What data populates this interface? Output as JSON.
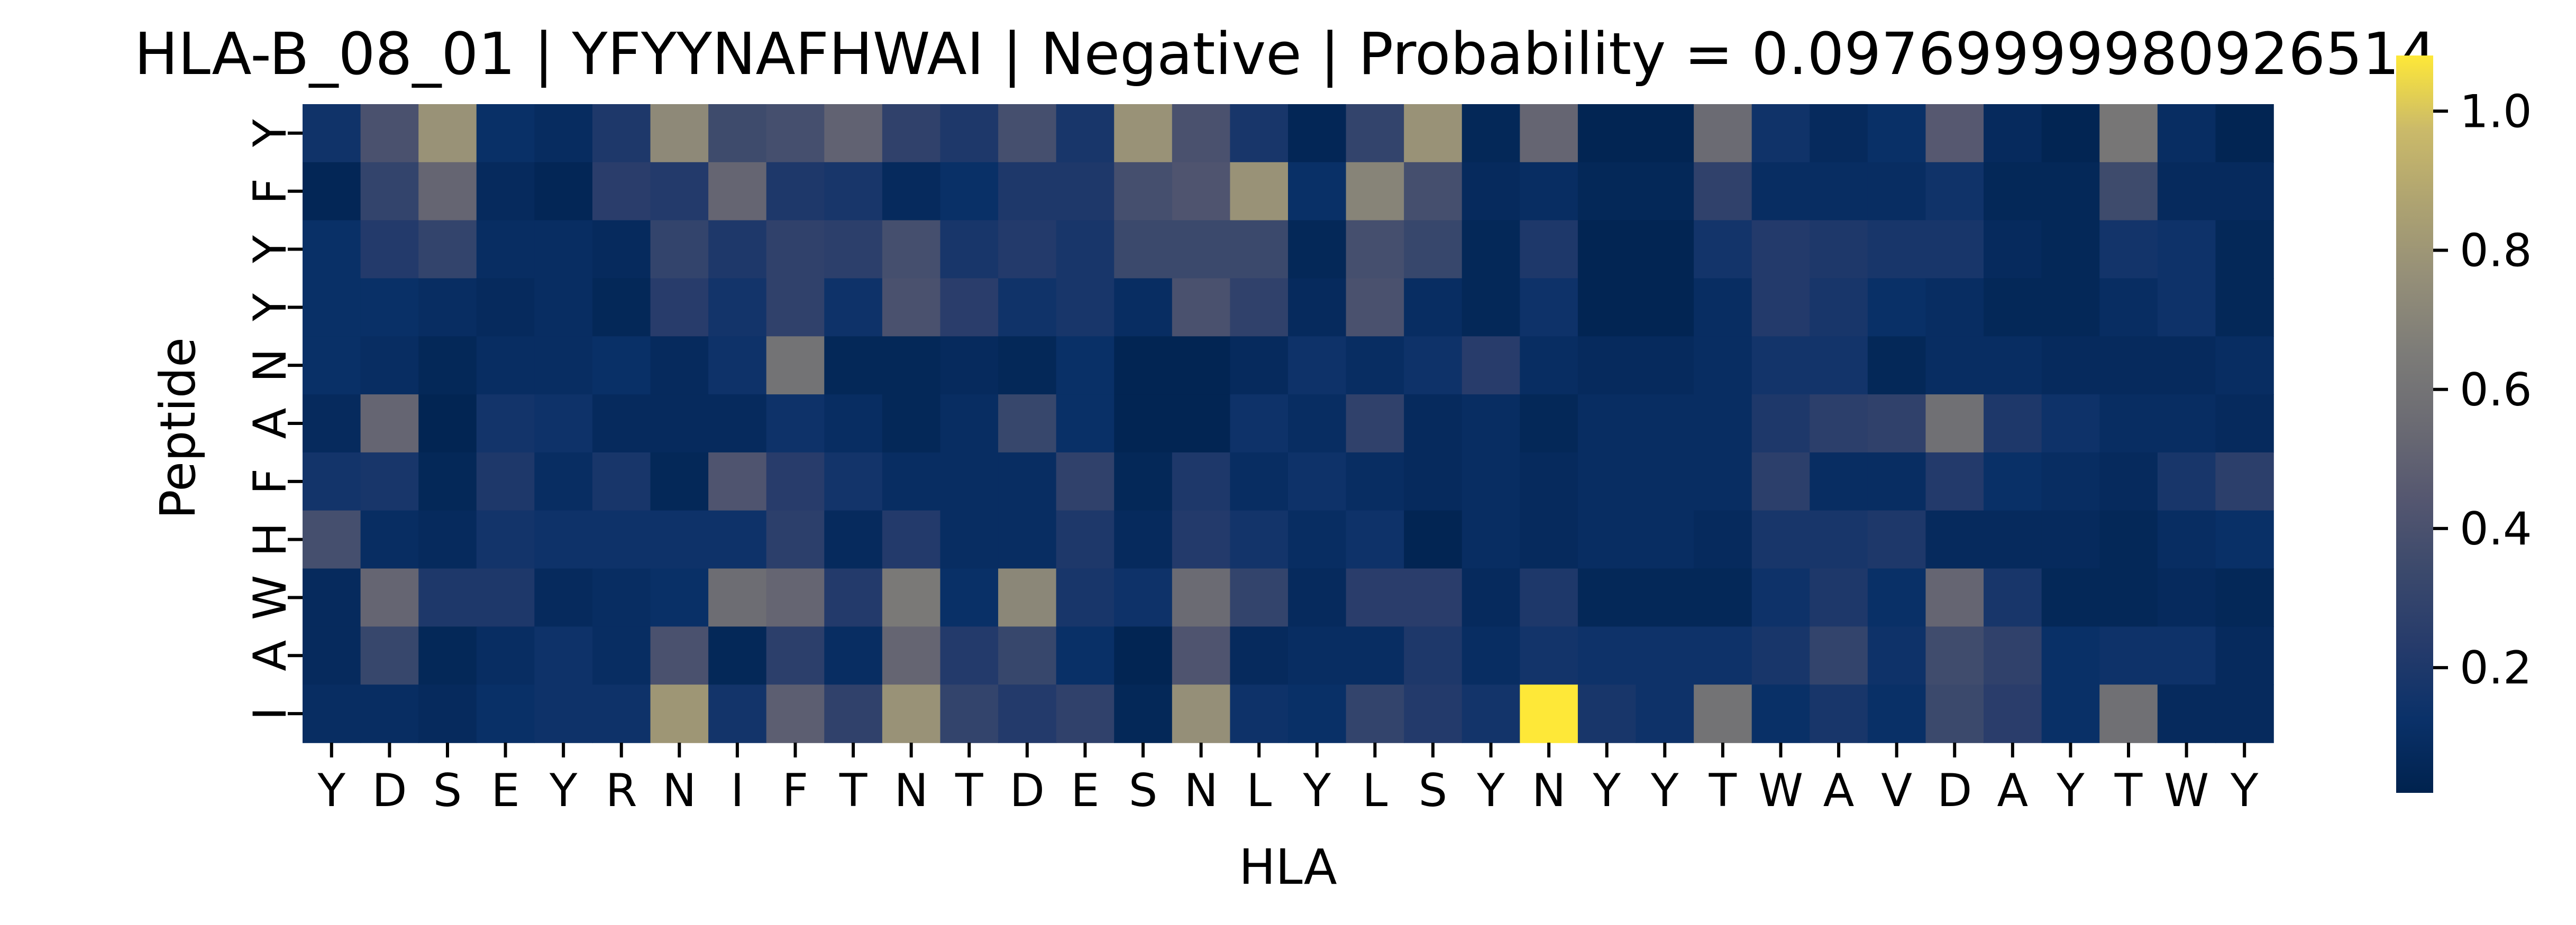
{
  "chart_data": {
    "type": "heatmap",
    "title": "HLA-B_08_01 | YFYYNAFHWAI | Negative | Probability = 0.09769999980926514",
    "xlabel": "HLA",
    "ylabel": "Peptide",
    "x_categories": [
      "Y",
      "D",
      "S",
      "E",
      "Y",
      "R",
      "N",
      "I",
      "F",
      "T",
      "N",
      "T",
      "D",
      "E",
      "S",
      "N",
      "L",
      "Y",
      "L",
      "S",
      "Y",
      "N",
      "Y",
      "Y",
      "T",
      "W",
      "A",
      "V",
      "D",
      "A",
      "Y",
      "T",
      "W",
      "Y"
    ],
    "y_categories": [
      "Y",
      "F",
      "Y",
      "Y",
      "N",
      "A",
      "F",
      "H",
      "W",
      "A",
      "I"
    ],
    "colormap": "cividis",
    "colorbar": {
      "range": [
        0.02,
        1.08
      ],
      "ticks": [
        0.2,
        0.4,
        0.6,
        0.8,
        1.0
      ],
      "tick_labels": [
        "0.2",
        "0.4",
        "0.6",
        "0.8",
        "1.0"
      ]
    },
    "values": [
      [
        0.15,
        0.4,
        0.78,
        0.12,
        0.09,
        0.2,
        0.73,
        0.35,
        0.38,
        0.5,
        0.28,
        0.2,
        0.38,
        0.18,
        0.78,
        0.4,
        0.18,
        0.05,
        0.3,
        0.78,
        0.06,
        0.52,
        0.04,
        0.04,
        0.55,
        0.15,
        0.08,
        0.12,
        0.45,
        0.08,
        0.04,
        0.62,
        0.1,
        0.04
      ],
      [
        0.05,
        0.3,
        0.52,
        0.08,
        0.05,
        0.25,
        0.22,
        0.52,
        0.2,
        0.18,
        0.08,
        0.12,
        0.2,
        0.2,
        0.38,
        0.42,
        0.78,
        0.12,
        0.7,
        0.38,
        0.08,
        0.1,
        0.06,
        0.06,
        0.28,
        0.1,
        0.1,
        0.1,
        0.15,
        0.06,
        0.06,
        0.35,
        0.08,
        0.08
      ],
      [
        0.12,
        0.22,
        0.3,
        0.1,
        0.1,
        0.08,
        0.3,
        0.2,
        0.28,
        0.26,
        0.38,
        0.18,
        0.22,
        0.18,
        0.34,
        0.34,
        0.34,
        0.06,
        0.38,
        0.32,
        0.06,
        0.2,
        0.04,
        0.04,
        0.16,
        0.22,
        0.2,
        0.18,
        0.18,
        0.08,
        0.06,
        0.16,
        0.14,
        0.06
      ],
      [
        0.12,
        0.12,
        0.1,
        0.08,
        0.1,
        0.06,
        0.24,
        0.16,
        0.28,
        0.14,
        0.4,
        0.25,
        0.15,
        0.18,
        0.1,
        0.4,
        0.28,
        0.08,
        0.4,
        0.1,
        0.06,
        0.14,
        0.04,
        0.04,
        0.1,
        0.22,
        0.18,
        0.12,
        0.1,
        0.06,
        0.06,
        0.1,
        0.14,
        0.06
      ],
      [
        0.12,
        0.1,
        0.06,
        0.1,
        0.1,
        0.12,
        0.08,
        0.14,
        0.6,
        0.06,
        0.06,
        0.08,
        0.06,
        0.12,
        0.04,
        0.04,
        0.08,
        0.14,
        0.1,
        0.14,
        0.24,
        0.1,
        0.08,
        0.08,
        0.1,
        0.16,
        0.16,
        0.06,
        0.1,
        0.1,
        0.08,
        0.08,
        0.08,
        0.1
      ],
      [
        0.08,
        0.52,
        0.04,
        0.16,
        0.14,
        0.08,
        0.08,
        0.08,
        0.14,
        0.1,
        0.06,
        0.1,
        0.32,
        0.12,
        0.04,
        0.04,
        0.14,
        0.1,
        0.28,
        0.08,
        0.1,
        0.06,
        0.1,
        0.1,
        0.1,
        0.2,
        0.26,
        0.28,
        0.58,
        0.2,
        0.14,
        0.1,
        0.1,
        0.08
      ],
      [
        0.16,
        0.18,
        0.06,
        0.2,
        0.1,
        0.18,
        0.06,
        0.42,
        0.24,
        0.16,
        0.1,
        0.1,
        0.1,
        0.28,
        0.06,
        0.2,
        0.1,
        0.14,
        0.1,
        0.08,
        0.1,
        0.08,
        0.1,
        0.1,
        0.1,
        0.26,
        0.1,
        0.1,
        0.22,
        0.12,
        0.1,
        0.08,
        0.18,
        0.26
      ],
      [
        0.38,
        0.1,
        0.08,
        0.16,
        0.14,
        0.14,
        0.14,
        0.14,
        0.26,
        0.08,
        0.22,
        0.1,
        0.1,
        0.2,
        0.08,
        0.22,
        0.16,
        0.1,
        0.14,
        0.04,
        0.1,
        0.08,
        0.1,
        0.1,
        0.08,
        0.18,
        0.18,
        0.2,
        0.08,
        0.08,
        0.08,
        0.06,
        0.1,
        0.12
      ],
      [
        0.08,
        0.52,
        0.2,
        0.2,
        0.08,
        0.1,
        0.12,
        0.56,
        0.52,
        0.22,
        0.64,
        0.12,
        0.72,
        0.18,
        0.14,
        0.55,
        0.3,
        0.08,
        0.25,
        0.25,
        0.08,
        0.2,
        0.06,
        0.06,
        0.06,
        0.14,
        0.2,
        0.12,
        0.52,
        0.18,
        0.06,
        0.06,
        0.08,
        0.06
      ],
      [
        0.08,
        0.32,
        0.06,
        0.1,
        0.14,
        0.1,
        0.4,
        0.06,
        0.26,
        0.1,
        0.52,
        0.22,
        0.32,
        0.12,
        0.04,
        0.42,
        0.08,
        0.1,
        0.1,
        0.2,
        0.1,
        0.16,
        0.14,
        0.14,
        0.14,
        0.18,
        0.3,
        0.14,
        0.36,
        0.28,
        0.12,
        0.14,
        0.14,
        0.08
      ],
      [
        0.1,
        0.1,
        0.08,
        0.12,
        0.14,
        0.14,
        0.8,
        0.16,
        0.48,
        0.28,
        0.78,
        0.3,
        0.22,
        0.28,
        0.06,
        0.76,
        0.14,
        0.12,
        0.3,
        0.22,
        0.16,
        1.08,
        0.18,
        0.14,
        0.6,
        0.12,
        0.18,
        0.12,
        0.34,
        0.25,
        0.12,
        0.58,
        0.08,
        0.08
      ]
    ]
  }
}
